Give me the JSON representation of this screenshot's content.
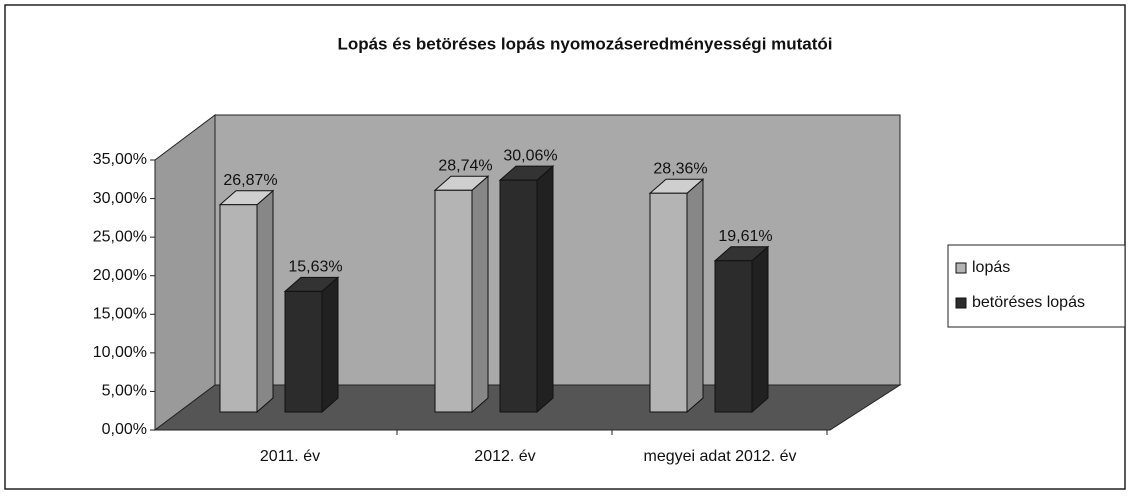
{
  "chart_data": {
    "type": "bar3d",
    "title": "Lopás és betöréses lopás nyomozáseredményességi mutatói",
    "categories": [
      "2011. év",
      "2012. év",
      "megyei adat 2012. év"
    ],
    "series": [
      {
        "name": "lopás",
        "color": "#b4b4b4",
        "values": [
          26.87,
          28.74,
          28.36
        ],
        "value_labels": [
          "26,87%",
          "28,74%",
          "28,36%"
        ]
      },
      {
        "name": "betöréses lopás",
        "color": "#2c2c2c",
        "values": [
          15.63,
          30.06,
          19.61
        ],
        "value_labels": [
          "15,63%",
          "30,06%",
          "19,61%"
        ]
      }
    ],
    "ylim": [
      0,
      35
    ],
    "yticks": [
      {
        "value": 0,
        "label": "0,00%"
      },
      {
        "value": 5,
        "label": "5,00%"
      },
      {
        "value": 10,
        "label": "10,00%"
      },
      {
        "value": 15,
        "label": "15,00%"
      },
      {
        "value": 20,
        "label": "20,00%"
      },
      {
        "value": 25,
        "label": "25,00%"
      },
      {
        "value": 30,
        "label": "30,00%"
      },
      {
        "value": 35,
        "label": "35,00%"
      }
    ],
    "legend": "right"
  }
}
